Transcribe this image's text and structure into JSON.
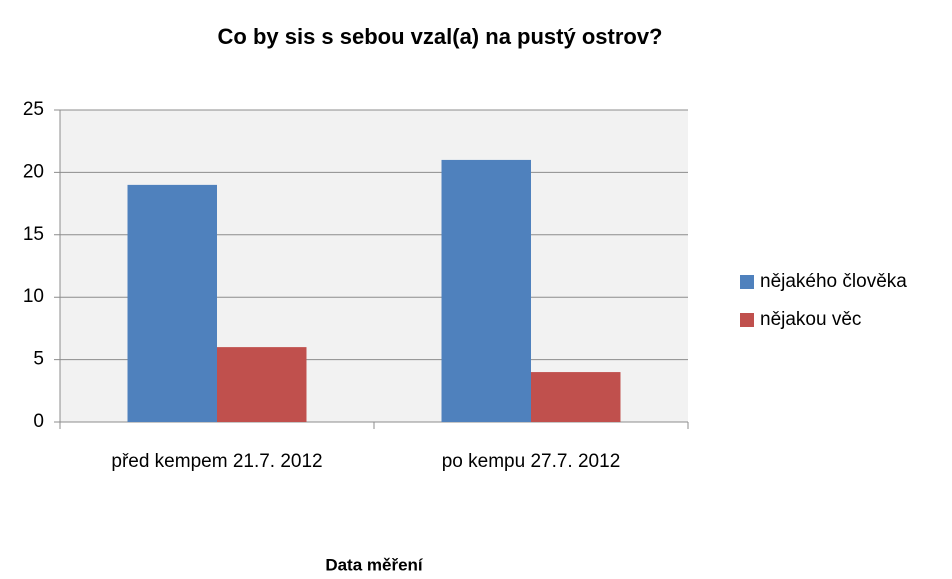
{
  "chart_data": {
    "type": "bar",
    "title": "Co by sis s sebou vzal(a) na pustý ostrov?",
    "x_label": "Data měření",
    "categories": [
      "před kempem 21.7. 2012",
      "po kempu 27.7. 2012"
    ],
    "series": [
      {
        "name": "nějakého člověka",
        "color": "#4f81bd",
        "values": [
          19,
          21
        ]
      },
      {
        "name": "nějakou věc",
        "color": "#c0504d",
        "values": [
          6,
          4
        ]
      }
    ],
    "ylim": [
      0,
      25
    ],
    "yticks": [
      0,
      5,
      10,
      15,
      20,
      25
    ],
    "grid": true,
    "legend": "right"
  }
}
